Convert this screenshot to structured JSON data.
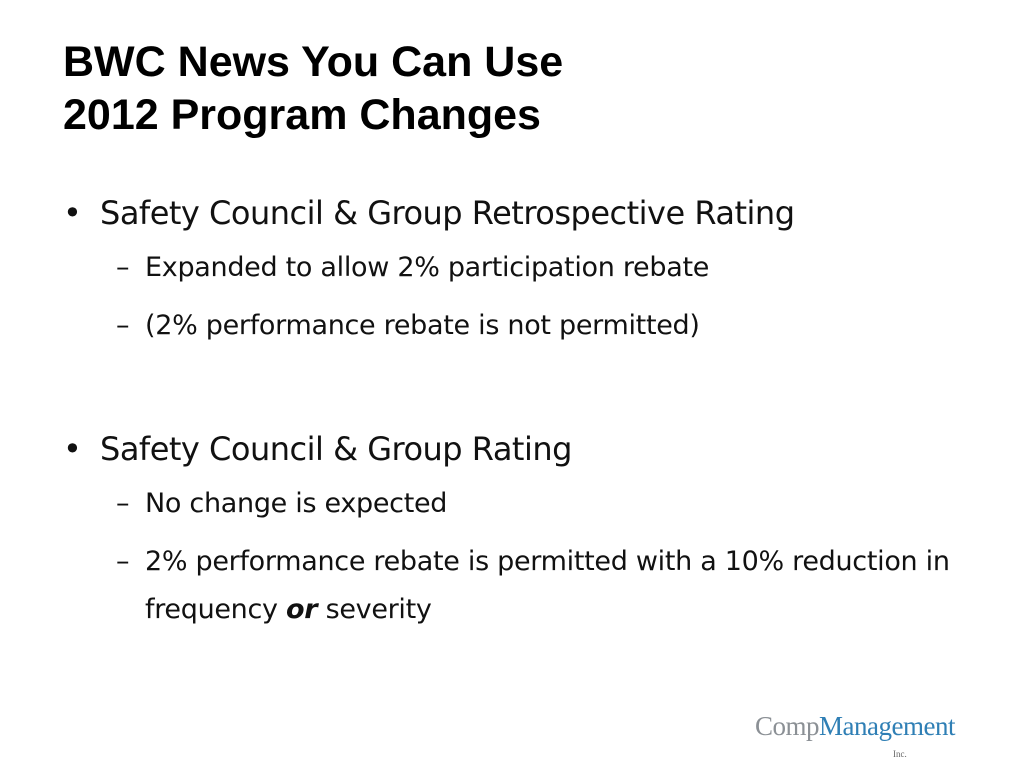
{
  "title": {
    "line1": "BWC News You Can Use",
    "line2": "2012 Program Changes"
  },
  "bullets": [
    {
      "text": "Safety Council & Group Retrospective Rating",
      "subs": [
        "Expanded to allow 2% participation rebate",
        "(2% performance rebate is not permitted)"
      ]
    },
    {
      "text": "Safety Council & Group Rating",
      "subs": [
        "No change is expected"
      ],
      "last_sub": {
        "before": "2% performance rebate is permitted with a 10% reduction in frequency ",
        "emphasis": "or",
        "after": " severity"
      }
    }
  ],
  "symbols": {
    "bullet": "•",
    "dash": "–"
  },
  "logo": {
    "part1": "Comp",
    "part2": "Management",
    "suffix": "Inc.",
    "colors": {
      "part1": "#8b9095",
      "part2": "#2f7fb5"
    }
  }
}
